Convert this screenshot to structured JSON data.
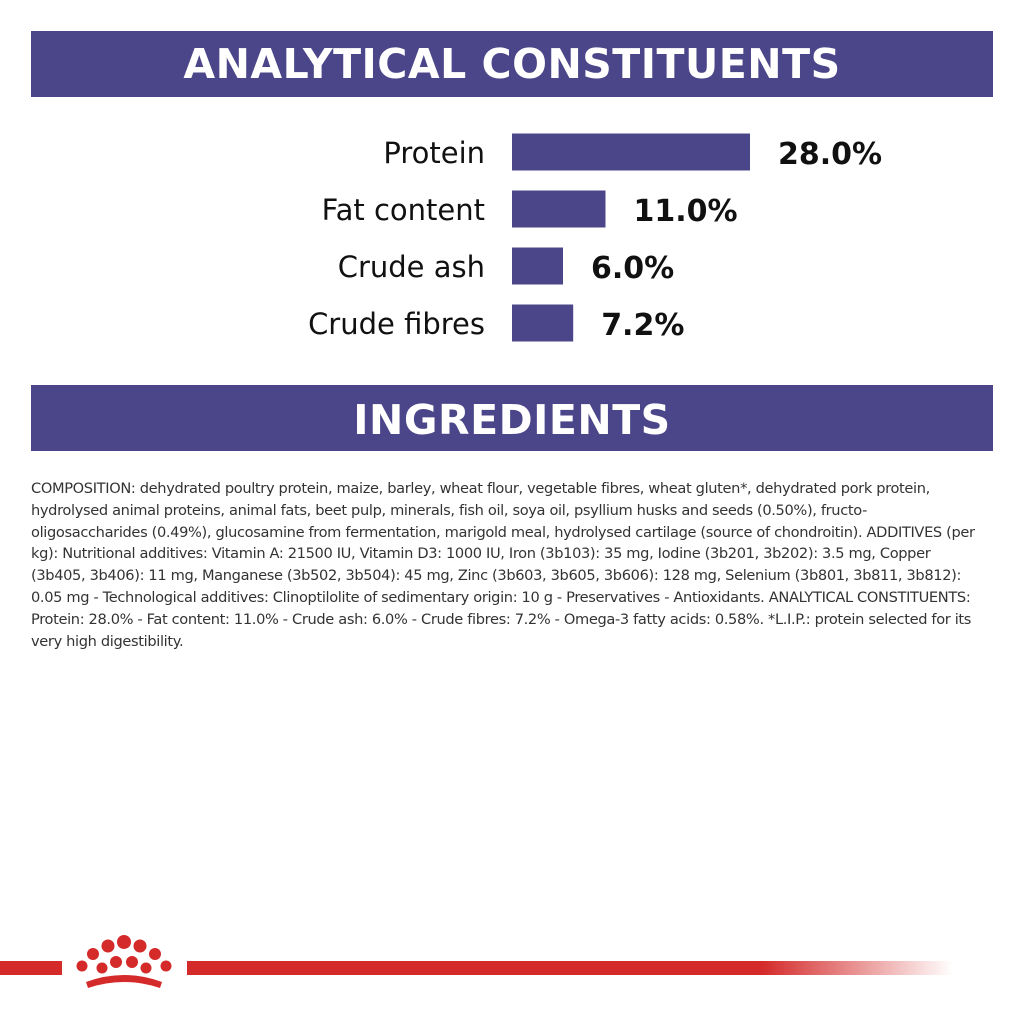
{
  "sections": {
    "analytical_title": "ANALYTICAL CONSTITUENTS",
    "ingredients_title": "INGREDIENTS"
  },
  "chart_data": {
    "type": "bar",
    "orientation": "horizontal",
    "categories": [
      "Protein",
      "Fat content",
      "Crude ash",
      "Crude fibres"
    ],
    "values": [
      28.0,
      11.0,
      6.0,
      7.2
    ],
    "value_labels": [
      "28.0%",
      "11.0%",
      "6.0%",
      "7.2%"
    ],
    "unit": "%",
    "title": "ANALYTICAL CONSTITUENTS",
    "xlabel": "",
    "ylabel": "",
    "grid": false,
    "legend": "none",
    "bar_color": "#4b4589"
  },
  "composition_text": "COMPOSITION: dehydrated poultry protein, maize, barley, wheat flour, vegetable fibres, wheat gluten*, dehydrated pork protein, hydrolysed animal proteins, animal fats, beet pulp, minerals, fish oil, soya oil, psyllium husks and seeds (0.50%), fructo-oligosaccharides (0.49%), glucosamine from fermentation, marigold meal, hydrolysed cartilage (source of chondroitin). ADDITIVES (per kg): Nutritional additives: Vitamin A: 21500 IU, Vitamin D3: 1000 IU, Iron (3b103): 35 mg, Iodine (3b201, 3b202): 3.5 mg, Copper (3b405, 3b406): 11 mg, Manganese (3b502, 3b504): 45 mg, Zinc (3b603, 3b605, 3b606): 128 mg, Selenium (3b801, 3b811, 3b812): 0.05 mg - Technological additives: Clinoptilolite of sedimentary origin: 10 g - Preservatives - Antioxidants. ANALYTICAL CONSTITUENTS: Protein: 28.0% - Fat content: 11.0% - Crude ash: 6.0% - Crude fibres: 7.2% - Omega-3 fatty acids: 0.58%. *L.I.P.: protein selected for its very high digestibility.",
  "colors": {
    "banner": "#4b4589",
    "brand_red": "#d42a2a"
  },
  "icons": {
    "logo": "crown-logo-icon"
  }
}
